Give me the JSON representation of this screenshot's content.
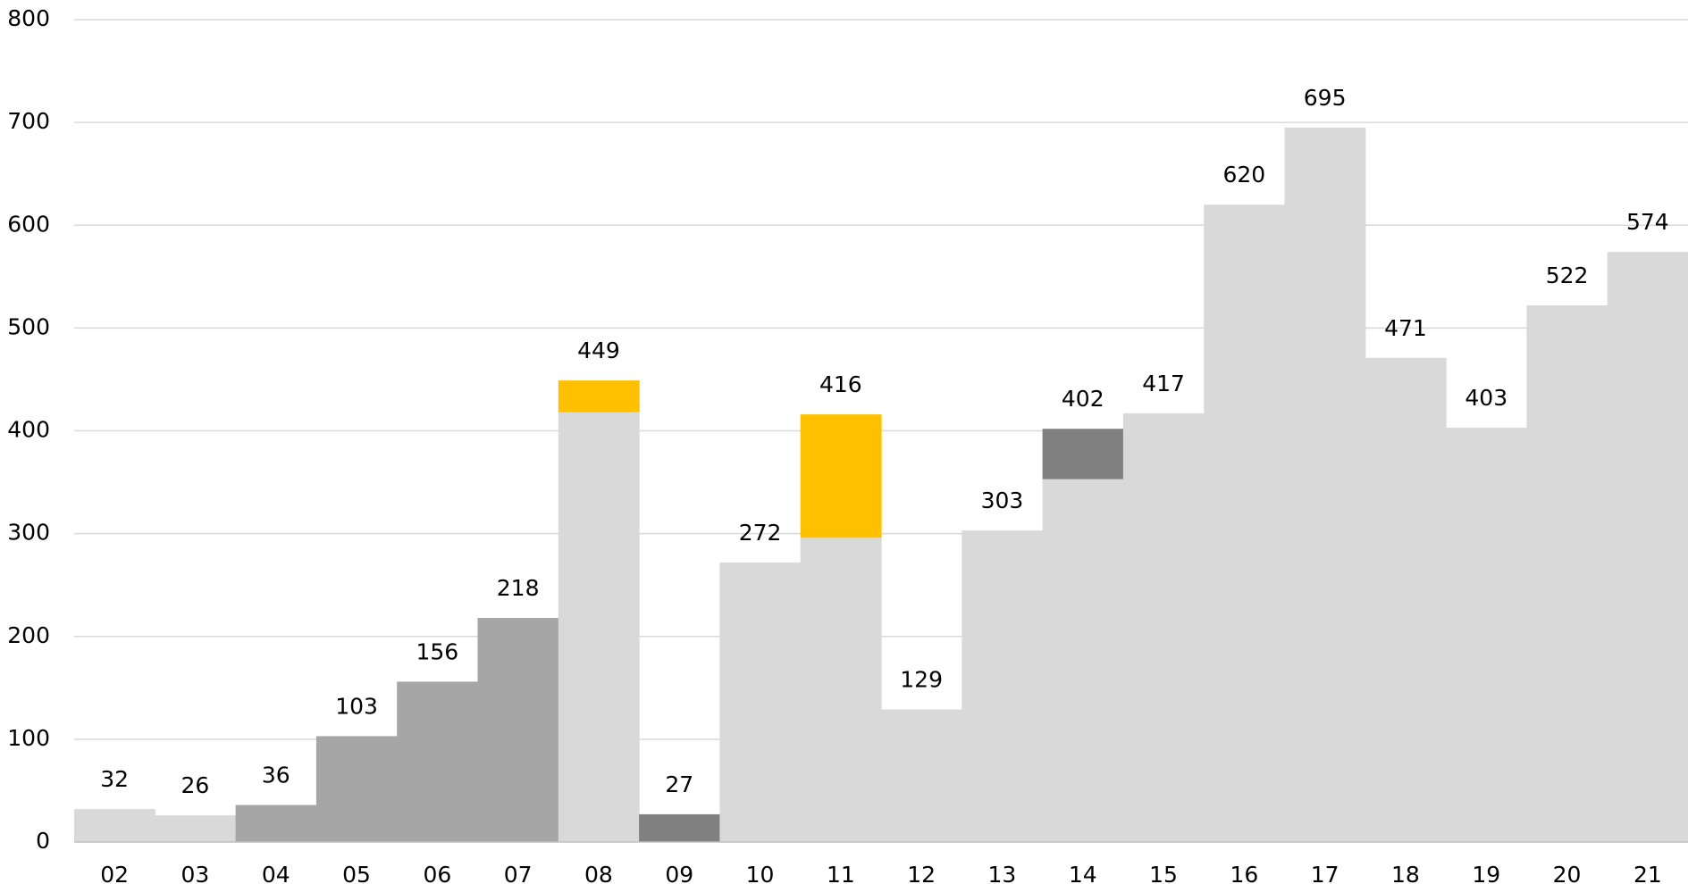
{
  "chart_data": {
    "type": "bar",
    "subtype": "waterfall-step",
    "categories": [
      "02",
      "03",
      "04",
      "05",
      "06",
      "07",
      "08",
      "09",
      "10",
      "11",
      "12",
      "13",
      "14",
      "15",
      "16",
      "17",
      "18",
      "19",
      "20",
      "21"
    ],
    "values": [
      32,
      26,
      36,
      103,
      156,
      218,
      449,
      27,
      272,
      416,
      129,
      303,
      402,
      417,
      620,
      695,
      471,
      403,
      522,
      574
    ],
    "segments": [
      [
        {
          "value": 32,
          "color": "#d9d9d9"
        }
      ],
      [
        {
          "value": 26,
          "color": "#d9d9d9"
        }
      ],
      [
        {
          "value": 36,
          "color": "#a6a6a6"
        }
      ],
      [
        {
          "value": 103,
          "color": "#a6a6a6"
        }
      ],
      [
        {
          "value": 156,
          "color": "#a6a6a6"
        }
      ],
      [
        {
          "value": 218,
          "color": "#a6a6a6"
        }
      ],
      [
        {
          "value": 418,
          "color": "#d9d9d9"
        },
        {
          "value": 31,
          "color": "#ffc000"
        }
      ],
      [
        {
          "value": 27,
          "color": "#808080"
        }
      ],
      [
        {
          "value": 272,
          "color": "#d9d9d9"
        }
      ],
      [
        {
          "value": 296,
          "color": "#d9d9d9"
        },
        {
          "value": 120,
          "color": "#ffc000"
        }
      ],
      [
        {
          "value": 129,
          "color": "#d9d9d9"
        }
      ],
      [
        {
          "value": 303,
          "color": "#d9d9d9"
        }
      ],
      [
        {
          "value": 353,
          "color": "#d9d9d9"
        },
        {
          "value": 49,
          "color": "#808080"
        }
      ],
      [
        {
          "value": 417,
          "color": "#d9d9d9"
        }
      ],
      [
        {
          "value": 620,
          "color": "#d9d9d9"
        }
      ],
      [
        {
          "value": 695,
          "color": "#d9d9d9"
        }
      ],
      [
        {
          "value": 471,
          "color": "#d9d9d9"
        }
      ],
      [
        {
          "value": 403,
          "color": "#d9d9d9"
        }
      ],
      [
        {
          "value": 522,
          "color": "#d9d9d9"
        }
      ],
      [
        {
          "value": 574,
          "color": "#d9d9d9"
        }
      ]
    ],
    "ylim": [
      0,
      800
    ],
    "yticks": [
      0,
      100,
      200,
      300,
      400,
      500,
      600,
      700,
      800
    ],
    "grid": true,
    "legend": "none",
    "title": "",
    "xlabel": "",
    "ylabel": ""
  }
}
